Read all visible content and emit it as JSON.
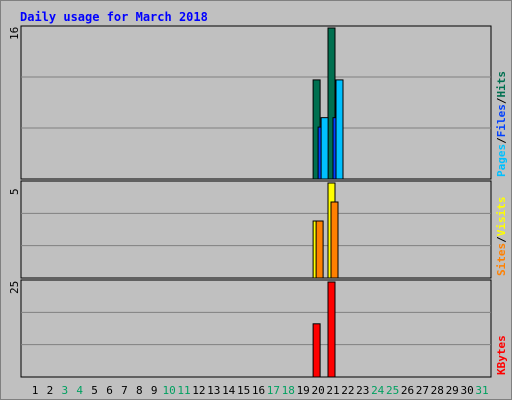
{
  "chart_data": {
    "type": "bar",
    "title": "Daily usage for March 2018",
    "days": [
      "1",
      "2",
      "3",
      "4",
      "5",
      "6",
      "7",
      "8",
      "9",
      "10",
      "11",
      "12",
      "13",
      "14",
      "15",
      "16",
      "17",
      "18",
      "19",
      "20",
      "21",
      "22",
      "23",
      "24",
      "25",
      "26",
      "27",
      "28",
      "29",
      "30",
      "31"
    ],
    "weekend_days": [
      "3",
      "4",
      "10",
      "11",
      "17",
      "18",
      "24",
      "25",
      "31"
    ],
    "panels": [
      {
        "id": "hits",
        "max_label": "16",
        "ymax": 16,
        "legend": [
          {
            "text": "Pages",
            "color": "#00c0ff"
          },
          {
            "text": "/",
            "color": "#000000"
          },
          {
            "text": "Files",
            "color": "#0040ff"
          },
          {
            "text": "/",
            "color": "#000000"
          },
          {
            "text": "Hits",
            "color": "#007050"
          }
        ],
        "series": [
          {
            "name": "Hits",
            "color": "#007050",
            "values": {
              "20": 10.5,
              "21": 16
            }
          },
          {
            "name": "Files",
            "color": "#0040ff",
            "values": {
              "20": 5.5,
              "21": 6.5
            }
          },
          {
            "name": "Pages",
            "color": "#00c0ff",
            "values": {
              "20": 6.5,
              "21": 10.5
            }
          }
        ]
      },
      {
        "id": "visits",
        "max_label": "5",
        "ymax": 5,
        "legend": [
          {
            "text": "Sites",
            "color": "#ff8000"
          },
          {
            "text": "/",
            "color": "#000000"
          },
          {
            "text": "Visits",
            "color": "#ffff00"
          }
        ],
        "series": [
          {
            "name": "Visits",
            "color": "#ffff00",
            "values": {
              "20": 3,
              "21": 5
            }
          },
          {
            "name": "Sites",
            "color": "#ff8000",
            "values": {
              "20": 3,
              "21": 4
            }
          }
        ]
      },
      {
        "id": "kbytes",
        "max_label": "25",
        "ymax": 25,
        "legend": [
          {
            "text": "KBytes",
            "color": "#ff0000"
          }
        ],
        "series": [
          {
            "name": "KBytes",
            "color": "#ff0000",
            "values": {
              "20": 14,
              "21": 25
            }
          }
        ]
      }
    ],
    "colors": {
      "background": "#c0c0c0",
      "gridline": "#808080",
      "title": "#0000ff",
      "weekday_label": "#000000",
      "weekend_label": "#00a060"
    }
  }
}
